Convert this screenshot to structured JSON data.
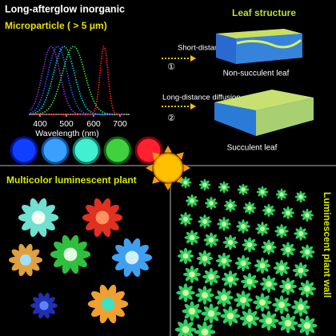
{
  "top_left": {
    "title": "Long-afterglow inorganic",
    "subtitle": "Microparticle ( > 5 μm)",
    "axis_ticks": [
      "400",
      "500",
      "600",
      "700"
    ],
    "axis_label": "Wavelength (nm)"
  },
  "diffusion": {
    "short": "Short-distance diffusion",
    "short_step": "①",
    "long": "Long-distance diffusion",
    "long_step": "②"
  },
  "leaf": {
    "title": "Leaf structure",
    "non_succulent": "Non-succulent leaf",
    "succulent": "Succulent leaf"
  },
  "bottom_left": {
    "title": "Multicolor luminescent plant"
  },
  "bottom_right": {
    "title": "Luminescent plant wall"
  }
}
